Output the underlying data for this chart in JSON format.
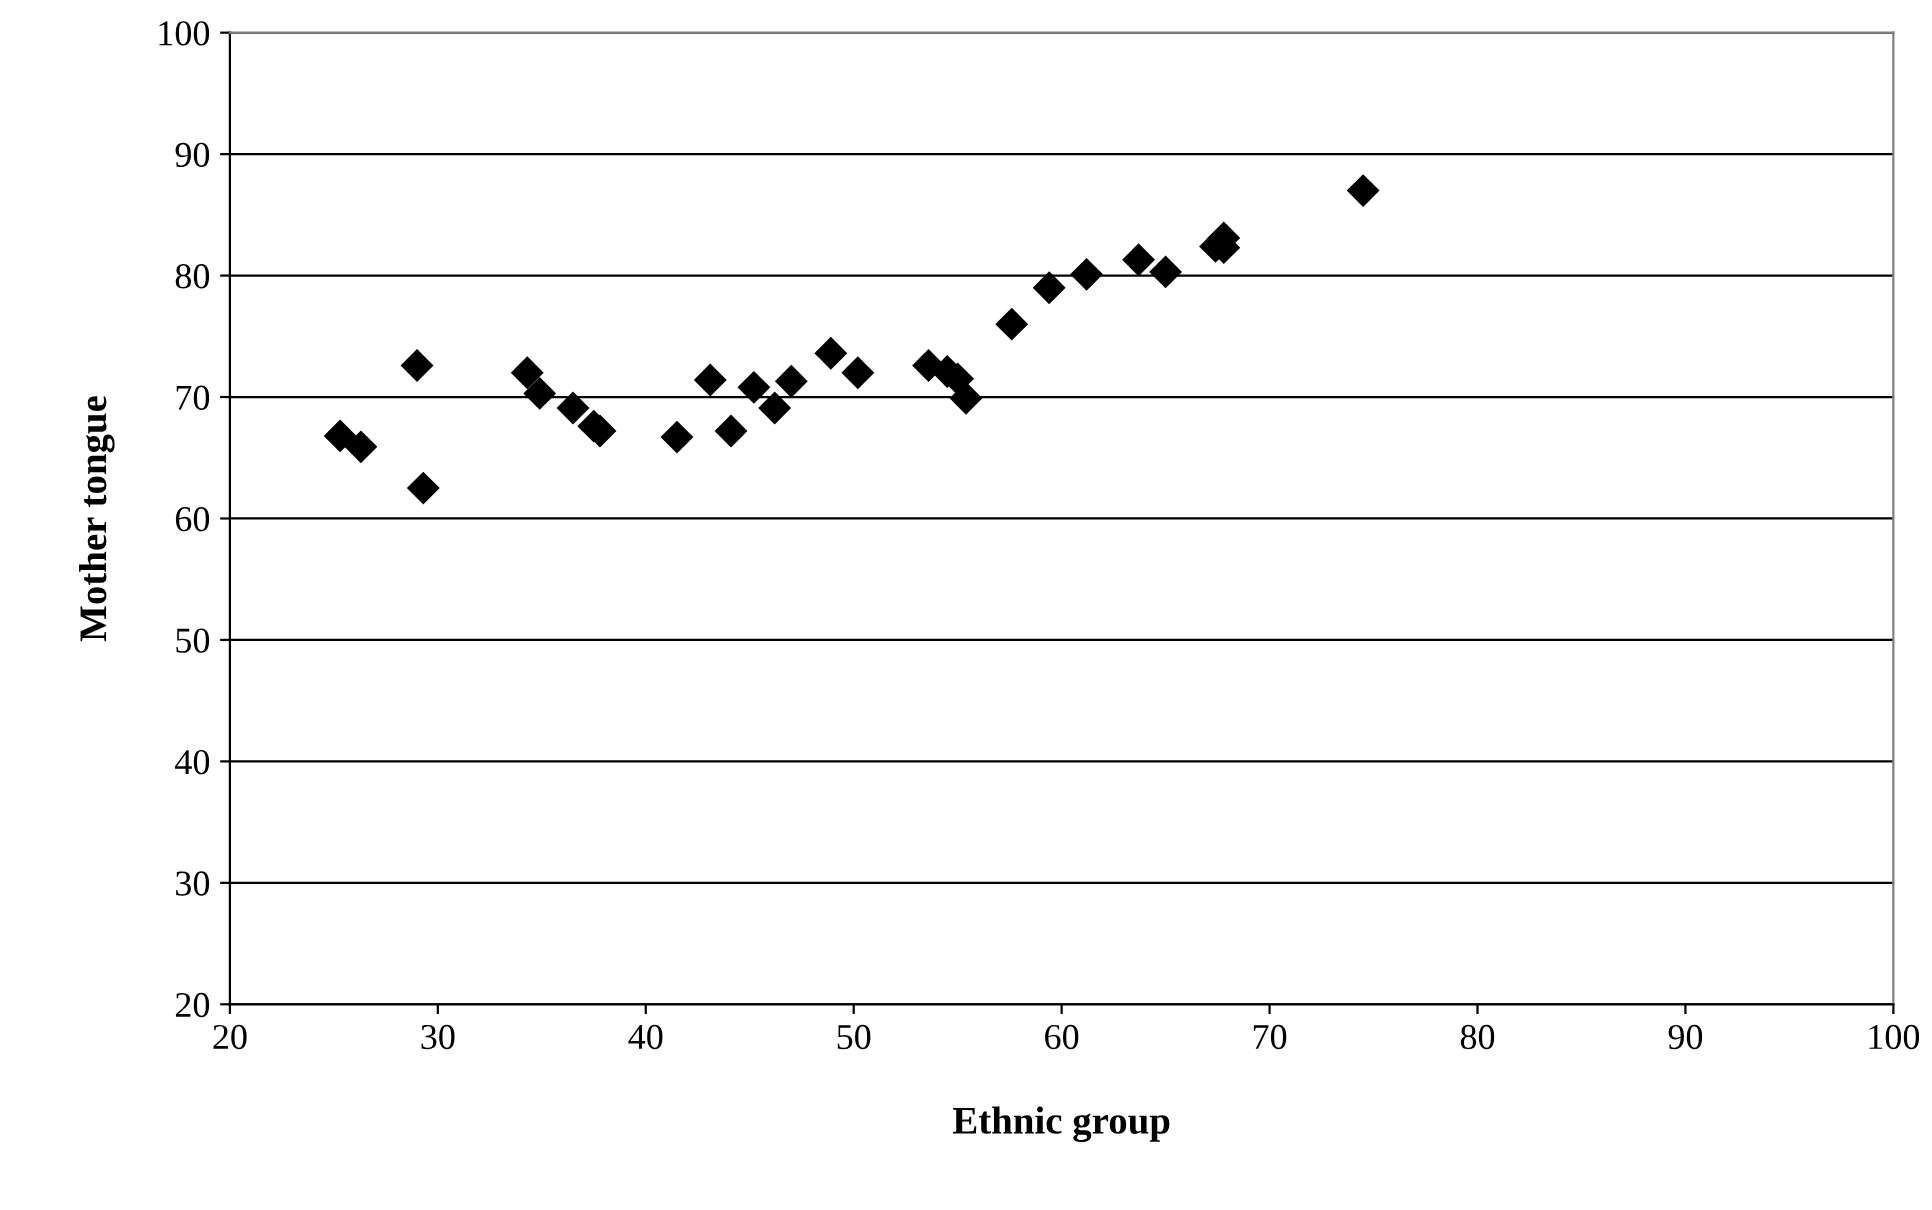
{
  "chart_data": {
    "type": "scatter",
    "xlabel": "Ethnic group",
    "ylabel": "Mother tongue",
    "x": [
      25.3,
      26.3,
      29.0,
      29.3,
      34.3,
      34.9,
      36.5,
      37.5,
      37.8,
      41.5,
      43.1,
      44.1,
      45.2,
      46.2,
      47.0,
      48.9,
      50.2,
      53.6,
      54.5,
      55.0,
      55.4,
      57.6,
      59.4,
      61.2,
      63.7,
      65.0,
      67.4,
      67.8,
      67.8,
      74.5
    ],
    "values": [
      66.8,
      65.9,
      72.6,
      62.5,
      72.0,
      70.3,
      69.1,
      67.6,
      67.2,
      66.7,
      71.4,
      67.2,
      70.8,
      69.1,
      71.3,
      73.6,
      72.0,
      72.6,
      72.1,
      71.5,
      69.9,
      76.0,
      79.0,
      80.1,
      81.3,
      80.3,
      82.4,
      83.1,
      82.3,
      87.0
    ],
    "color": "#000000",
    "marker": "diamond",
    "xlim": [
      20,
      100
    ],
    "xticks": [
      20,
      30,
      40,
      50,
      60,
      70,
      80,
      90,
      100
    ],
    "ylim": [
      20,
      100
    ],
    "yticks": [
      20,
      30,
      40,
      50,
      60,
      70,
      80,
      90,
      100
    ],
    "grid": "y",
    "legend": false
  }
}
